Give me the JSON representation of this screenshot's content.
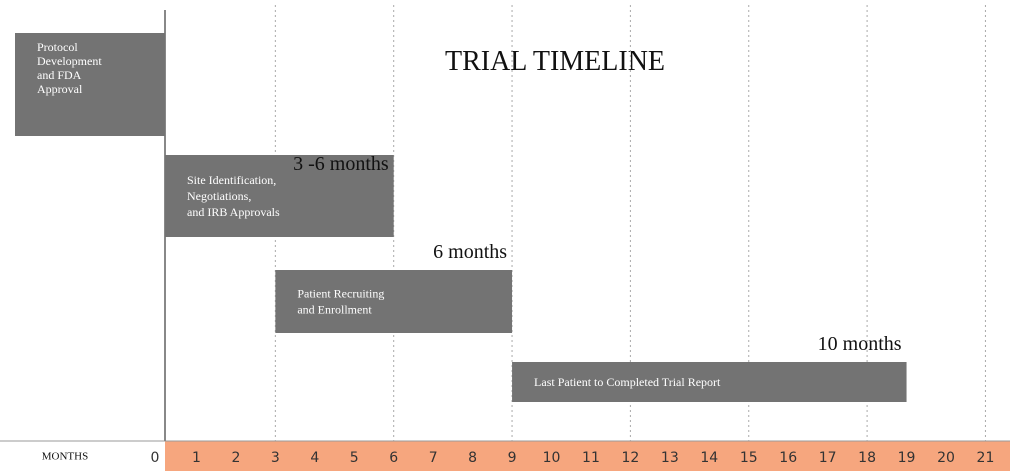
{
  "chart_data": {
    "type": "gantt",
    "title": "TRIAL TIMELINE",
    "xlabel": "MONTHS",
    "xticks": [
      0,
      1,
      2,
      3,
      4,
      5,
      6,
      7,
      8,
      9,
      10,
      11,
      12,
      13,
      14,
      15,
      16,
      17,
      18,
      19,
      20,
      21
    ],
    "gridlines": [
      3,
      6,
      9,
      12,
      15,
      18,
      21
    ],
    "bar_color": "#737373",
    "axis_color": "#f6a67e",
    "tasks": [
      {
        "label": [
          "Protocol",
          "Development",
          "and FDA",
          "Approval"
        ]
      },
      {
        "label": [
          "Site Identification,",
          "Negotiations,",
          "and IRB Approvals"
        ],
        "start": 0,
        "end": 6,
        "duration": "3 -6 months"
      },
      {
        "label": [
          "Patient Recruiting",
          "and Enrollment"
        ],
        "start": 3,
        "end": 9,
        "duration": "6 months"
      },
      {
        "label": [
          "Last Patient to Completed Trial Report"
        ],
        "start": 9,
        "end": 19,
        "duration": "10 months"
      }
    ]
  }
}
